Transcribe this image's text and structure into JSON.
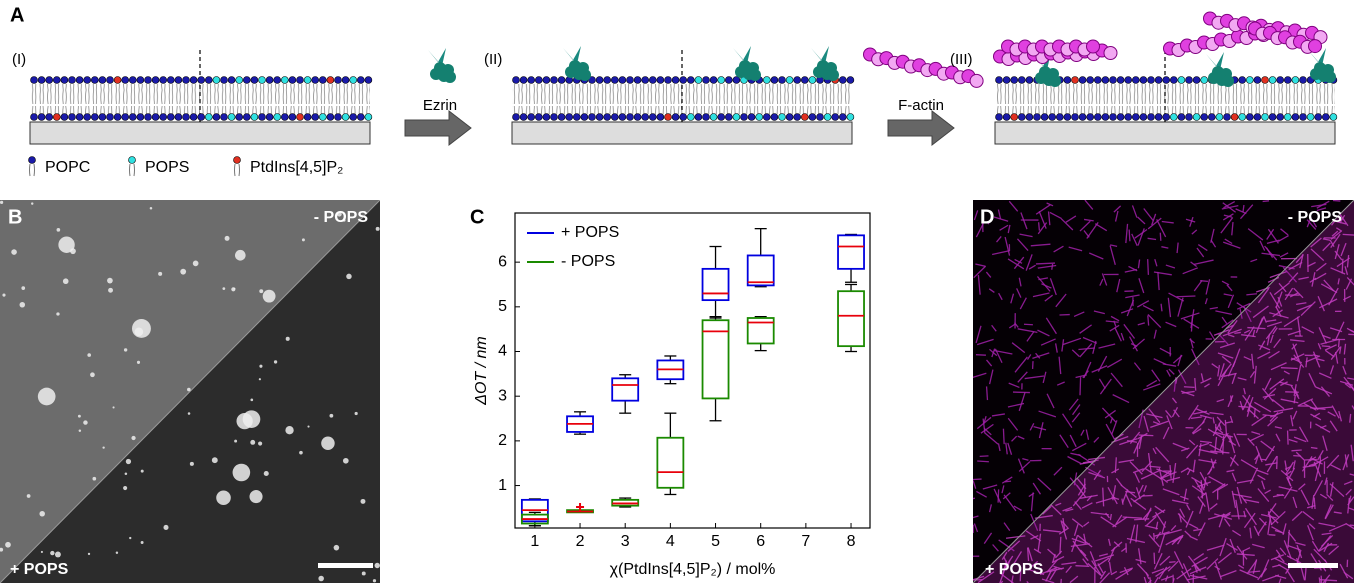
{
  "panel_a": {
    "label": "A",
    "steps": [
      "(I)",
      "(II)",
      "(III)"
    ],
    "arrows": [
      "Ezrin",
      "F-actin"
    ],
    "legend": [
      "POPC",
      "POPS",
      "PtdIns[4,5]P₂"
    ]
  },
  "panel_b": {
    "label": "B",
    "top": "- POPS",
    "bottom": "+ POPS"
  },
  "panel_d": {
    "label": "D",
    "top": "- POPS",
    "bottom": "+ POPS"
  },
  "chart_data": {
    "type": "box",
    "label": "C",
    "x_label": "χ(PtdIns[4,5]P₂) / mol%",
    "y_label": "ΔOT / nm",
    "xlim": [
      0.56,
      8.42
    ],
    "xticks": [
      1,
      2,
      3,
      4,
      5,
      6,
      7,
      8
    ],
    "ylim": [
      0.05,
      7.1
    ],
    "yticks": [
      1,
      2,
      3,
      4,
      5,
      6
    ],
    "median_color": "#e8000b",
    "series": [
      {
        "name": "+ POPS",
        "color": "#0000e0",
        "x": [
          1,
          2,
          3,
          4,
          5,
          6,
          8
        ],
        "low": [
          0.1,
          2.15,
          2.62,
          3.28,
          4.75,
          5.45,
          5.55
        ],
        "q1": [
          0.2,
          2.2,
          2.9,
          3.38,
          5.15,
          5.48,
          5.85
        ],
        "median": [
          0.45,
          2.38,
          3.25,
          3.6,
          5.3,
          5.55,
          6.35
        ],
        "q3": [
          0.68,
          2.55,
          3.4,
          3.8,
          5.85,
          6.15,
          6.6
        ],
        "high": [
          0.7,
          2.65,
          3.48,
          3.9,
          6.35,
          6.75,
          6.62
        ]
      },
      {
        "name": "- POPS",
        "color": "#1a8a00",
        "x": [
          1,
          2,
          3,
          4,
          5,
          6,
          8
        ],
        "low": [
          0.1,
          0.4,
          0.52,
          0.8,
          2.45,
          4.02,
          4.0
        ],
        "q1": [
          0.15,
          0.4,
          0.55,
          0.95,
          2.95,
          4.18,
          4.12
        ],
        "median": [
          0.25,
          0.42,
          0.6,
          1.3,
          4.45,
          4.65,
          4.8
        ],
        "q3": [
          0.35,
          0.45,
          0.68,
          2.07,
          4.7,
          4.75,
          5.35
        ],
        "high": [
          0.4,
          0.45,
          0.72,
          2.62,
          4.78,
          4.78,
          5.5
        ],
        "outliers": {
          "x": [
            2
          ],
          "values": [
            0.52
          ]
        }
      }
    ]
  }
}
